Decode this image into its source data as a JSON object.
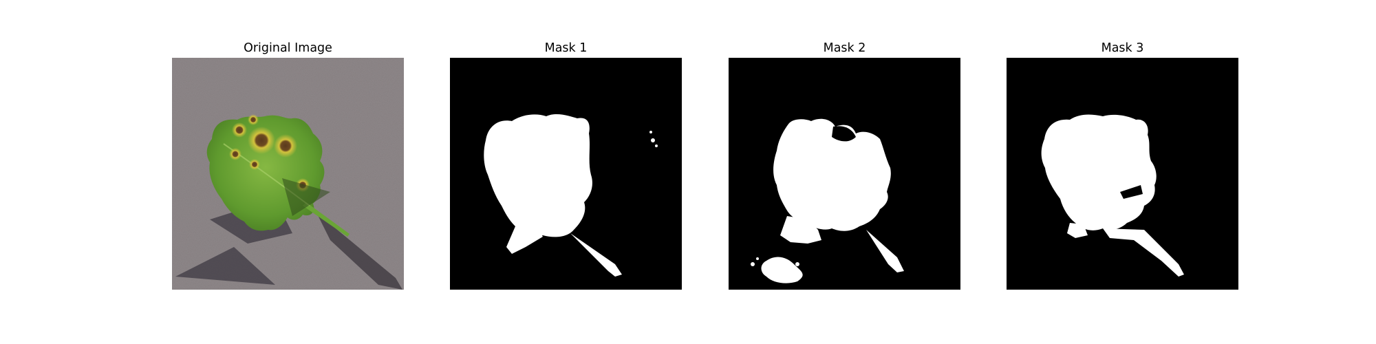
{
  "figure": {
    "panels": [
      {
        "title": "Original Image"
      },
      {
        "title": "Mask 1"
      },
      {
        "title": "Mask 2"
      },
      {
        "title": "Mask 3"
      }
    ]
  },
  "colors": {
    "mask_background": "#000000",
    "mask_foreground": "#ffffff",
    "surface_gray": "#8c8588",
    "leaf_green": "#6aa536",
    "leaf_yellow": "#c9b83c",
    "spot_brown": "#5a3a1e",
    "shadow": "#3f3b3e"
  }
}
